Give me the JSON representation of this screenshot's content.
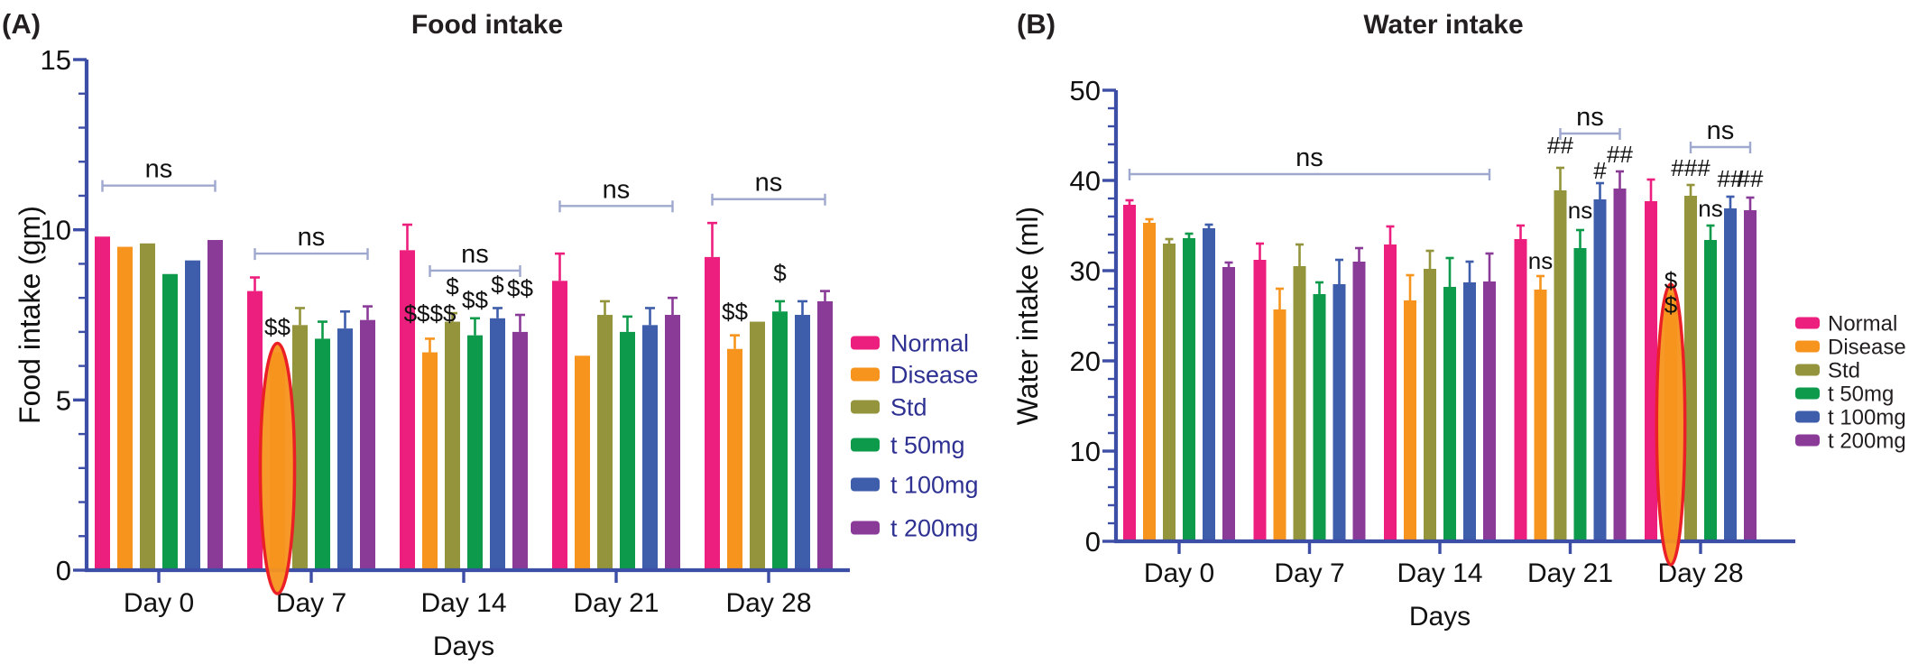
{
  "figure": {
    "description": "Two-panel bar chart figure of food and water intake over time",
    "colors": {
      "axis": "#3D4EA6",
      "bracket": "#9FA8CE",
      "highlight_ellipse_stroke": "#EB2026",
      "highlight_ellipse_fill": "#F7941E",
      "panel_a_legend_text": "#2E3192",
      "panel_b_legend_text": "#231F20",
      "title_text": "#231F20",
      "annotation_text": "#111111"
    }
  },
  "chart_data": [
    {
      "id": "food-intake",
      "type": "bar",
      "panel_label": "(A)",
      "title": "Food intake",
      "xlabel": "Days",
      "ylabel": "Food intake (gm)",
      "categories": [
        "Day 0",
        "Day 7",
        "Day 14",
        "Day 21",
        "Day 28"
      ],
      "ylim": [
        0,
        15
      ],
      "ytick_step": 5,
      "yminor_step": 1,
      "grid": false,
      "legend_position": "right",
      "legend_text_color": "#2E3192",
      "series": [
        {
          "name": "Normal",
          "color": "#EC1F7E",
          "values": [
            9.8,
            8.2,
            9.4,
            8.5,
            9.2
          ],
          "errors": [
            0,
            0.4,
            0.75,
            0.8,
            1.0
          ]
        },
        {
          "name": "Disease",
          "color": "#F7941E",
          "values": [
            9.5,
            6.4,
            6.4,
            6.3,
            6.5
          ],
          "errors": [
            0,
            0,
            0.4,
            0,
            0.4
          ]
        },
        {
          "name": "Std",
          "color": "#93943B",
          "values": [
            9.6,
            7.2,
            7.3,
            7.5,
            7.3
          ],
          "errors": [
            0,
            0.5,
            0.25,
            0.4,
            0
          ]
        },
        {
          "name": "t 50mg",
          "color": "#0D9B4B",
          "values": [
            8.7,
            6.8,
            6.9,
            7.0,
            7.6
          ],
          "errors": [
            0,
            0.5,
            0.5,
            0.45,
            0.3
          ]
        },
        {
          "name": "t 100mg",
          "color": "#3E5DAA",
          "values": [
            9.1,
            7.1,
            7.4,
            7.2,
            7.5
          ],
          "errors": [
            0,
            0.5,
            0.3,
            0.5,
            0.4
          ]
        },
        {
          "name": "t 200mg",
          "color": "#8A3B98",
          "values": [
            9.7,
            7.35,
            7.0,
            7.5,
            7.9
          ],
          "errors": [
            0,
            0.4,
            0.5,
            0.5,
            0.3
          ]
        }
      ],
      "annotations": {
        "brackets": [
          {
            "label": "ns",
            "y": 11.3,
            "from": [
              "Day 0",
              "Normal"
            ],
            "to": [
              "Day 0",
              "t 200mg"
            ]
          },
          {
            "label": "ns",
            "y": 9.3,
            "from": [
              "Day 7",
              "Normal"
            ],
            "to": [
              "Day 7",
              "t 200mg"
            ]
          },
          {
            "label": "ns",
            "y": 8.8,
            "from": [
              "Day 14",
              "Disease"
            ],
            "to": [
              "Day 14",
              "t 200mg"
            ]
          },
          {
            "label": "ns",
            "y": 10.7,
            "from": [
              "Day 21",
              "Normal"
            ],
            "to": [
              "Day 21",
              "t 200mg"
            ]
          },
          {
            "label": "ns",
            "y": 10.9,
            "from": [
              "Day 28",
              "Normal"
            ],
            "to": [
              "Day 28",
              "t 200mg"
            ]
          }
        ],
        "labels": [
          {
            "text": "$$",
            "at": [
              "Day 7",
              "Disease"
            ],
            "y": 6.9
          },
          {
            "text": "$$$$",
            "at": [
              "Day 14",
              "Disease"
            ],
            "y": 7.3
          },
          {
            "text": "$",
            "at": [
              "Day 14",
              "Std"
            ],
            "y": 8.1
          },
          {
            "text": "$$",
            "at": [
              "Day 14",
              "t 50mg"
            ],
            "y": 7.7
          },
          {
            "text": "$",
            "at": [
              "Day 14",
              "t 100mg"
            ],
            "y": 8.15
          },
          {
            "text": "$$",
            "at": [
              "Day 14",
              "t 200mg"
            ],
            "y": 8.05
          },
          {
            "text": "$$",
            "at": [
              "Day 28",
              "Disease"
            ],
            "y": 7.35
          },
          {
            "text": "$",
            "at": [
              "Day 28",
              "t 50mg"
            ],
            "y": 8.5
          }
        ],
        "highlight_ellipses": [
          {
            "at": [
              "Day 7",
              "Disease"
            ]
          }
        ]
      }
    },
    {
      "id": "water-intake",
      "type": "bar",
      "panel_label": "(B)",
      "title": "Water intake",
      "xlabel": "Days",
      "ylabel": "Water intake (ml)",
      "categories": [
        "Day 0",
        "Day 7",
        "Day 14",
        "Day 21",
        "Day 28"
      ],
      "ylim": [
        0,
        50
      ],
      "ytick_step": 10,
      "yminor_step": 2,
      "grid": false,
      "legend_position": "right",
      "legend_text_color": "#231F20",
      "series": [
        {
          "name": "Normal",
          "color": "#EC1F7E",
          "values": [
            37.3,
            31.2,
            32.9,
            33.5,
            37.7
          ],
          "errors": [
            0.5,
            1.8,
            2.0,
            1.5,
            2.4
          ]
        },
        {
          "name": "Disease",
          "color": "#F7941E",
          "values": [
            35.3,
            25.7,
            26.7,
            27.9,
            27.5
          ],
          "errors": [
            0.4,
            2.3,
            2.8,
            1.5,
            0
          ]
        },
        {
          "name": "Std",
          "color": "#93943B",
          "values": [
            33.0,
            30.5,
            30.2,
            38.9,
            38.3
          ],
          "errors": [
            0.5,
            2.4,
            2.0,
            2.5,
            1.2
          ]
        },
        {
          "name": "t 50mg",
          "color": "#0D9B4B",
          "values": [
            33.6,
            27.4,
            28.2,
            32.5,
            33.4
          ],
          "errors": [
            0.5,
            1.3,
            3.2,
            2.0,
            1.6
          ]
        },
        {
          "name": "t 100mg",
          "color": "#3E5DAA",
          "values": [
            34.7,
            28.5,
            28.7,
            37.9,
            36.9
          ],
          "errors": [
            0.4,
            2.7,
            2.3,
            1.8,
            1.3
          ]
        },
        {
          "name": "t 200mg",
          "color": "#8A3B98",
          "values": [
            30.4,
            31.0,
            28.8,
            39.1,
            36.7
          ],
          "errors": [
            0.5,
            1.5,
            3.1,
            1.9,
            1.4
          ]
        }
      ],
      "annotations": {
        "brackets": [
          {
            "label": "ns",
            "y": 40.7,
            "from": [
              "Day 0",
              "Normal"
            ],
            "to": [
              "Day 14",
              "t 200mg"
            ]
          },
          {
            "label": "ns",
            "y": 45.2,
            "from": [
              "Day 21",
              "Std"
            ],
            "to": [
              "Day 21",
              "t 200mg"
            ]
          },
          {
            "label": "ns",
            "y": 43.7,
            "from": [
              "Day 28",
              "Std"
            ],
            "to": [
              "Day 28",
              "t 200mg"
            ]
          }
        ],
        "labels": [
          {
            "text": "ns",
            "at": [
              "Day 21",
              "Disease"
            ],
            "y": 30.2
          },
          {
            "text": "##",
            "at": [
              "Day 21",
              "Std"
            ],
            "y": 43.0
          },
          {
            "text": "ns",
            "at": [
              "Day 21",
              "t 50mg"
            ],
            "y": 35.8
          },
          {
            "text": "#",
            "at": [
              "Day 21",
              "t 100mg"
            ],
            "y": 40.2
          },
          {
            "text": "##",
            "at": [
              "Day 21",
              "t 200mg"
            ],
            "y": 42.0
          },
          {
            "text": "$",
            "at": [
              "Day 28",
              "Disease"
            ],
            "y": 28.0
          },
          {
            "text": "$",
            "at": [
              "Day 28",
              "Disease"
            ],
            "y": 25.3
          },
          {
            "text": "###",
            "at": [
              "Day 28",
              "Std"
            ],
            "y": 40.5
          },
          {
            "text": "ns",
            "at": [
              "Day 28",
              "t 50mg"
            ],
            "y": 36.0
          },
          {
            "text": "##",
            "at": [
              "Day 28",
              "t 100mg"
            ],
            "y": 39.3
          },
          {
            "text": "##",
            "at": [
              "Day 28",
              "t 200mg"
            ],
            "y": 39.3
          }
        ],
        "highlight_ellipses": [
          {
            "at": [
              "Day 28",
              "Disease"
            ]
          }
        ]
      }
    }
  ]
}
